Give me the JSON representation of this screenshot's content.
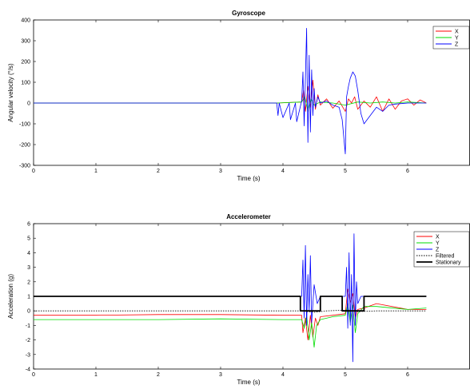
{
  "chart_data": [
    {
      "type": "line",
      "title": "Gyroscope",
      "xlabel": "Time (s)",
      "ylabel": "Angular velocity (°/s)",
      "xlim": [
        0,
        7
      ],
      "ylim": [
        -300,
        400
      ],
      "xticks": [
        0,
        1,
        2,
        3,
        4,
        5,
        6
      ],
      "yticks": [
        -300,
        -200,
        -100,
        0,
        100,
        200,
        300,
        400
      ],
      "legend_position": "top-right",
      "grid": false,
      "series": [
        {
          "name": "X",
          "color": "#ff0000",
          "x": [
            0,
            3.9,
            4.3,
            4.33,
            4.36,
            4.4,
            4.44,
            4.48,
            4.52,
            4.56,
            4.6,
            4.7,
            4.8,
            4.9,
            5.0,
            5.05,
            5.1,
            5.15,
            5.2,
            5.3,
            5.4,
            5.5,
            5.6,
            5.7,
            5.8,
            5.9,
            6.0,
            6.1,
            6.2,
            6.3
          ],
          "y": [
            0,
            0,
            5,
            60,
            -40,
            80,
            -20,
            110,
            -30,
            40,
            -10,
            20,
            -25,
            10,
            -40,
            20,
            0,
            30,
            -30,
            10,
            -20,
            30,
            -40,
            20,
            -30,
            10,
            20,
            -10,
            15,
            0
          ]
        },
        {
          "name": "Y",
          "color": "#00dd00",
          "x": [
            0,
            3.9,
            4.3,
            4.35,
            4.4,
            4.45,
            4.5,
            4.6,
            4.8,
            5.0,
            5.2,
            5.4,
            5.6,
            5.8,
            6.0,
            6.3
          ],
          "y": [
            0,
            0,
            5,
            30,
            -40,
            20,
            -10,
            5,
            0,
            -10,
            5,
            0,
            5,
            0,
            5,
            0
          ]
        },
        {
          "name": "Z",
          "color": "#0000ff",
          "x": [
            0,
            3.9,
            3.92,
            3.94,
            4.0,
            4.1,
            4.12,
            4.2,
            4.22,
            4.3,
            4.32,
            4.34,
            4.36,
            4.38,
            4.4,
            4.42,
            4.44,
            4.46,
            4.48,
            4.5,
            4.52,
            4.56,
            4.6,
            4.7,
            4.8,
            4.9,
            4.95,
            5.0,
            5.02,
            5.05,
            5.08,
            5.12,
            5.16,
            5.2,
            5.25,
            5.3,
            5.4,
            5.5,
            5.6,
            5.7,
            5.8,
            6.0,
            6.2,
            6.3
          ],
          "y": [
            0,
            0,
            -60,
            0,
            -70,
            0,
            -80,
            0,
            -90,
            10,
            150,
            -110,
            120,
            360,
            -190,
            230,
            -140,
            160,
            -60,
            70,
            -20,
            30,
            0,
            10,
            -10,
            -20,
            -80,
            -245,
            30,
            80,
            120,
            150,
            130,
            60,
            -50,
            -100,
            -60,
            -20,
            -40,
            -10,
            -5,
            0,
            0,
            0
          ]
        }
      ]
    },
    {
      "type": "line",
      "title": "Accelerometer",
      "xlabel": "Time (s)",
      "ylabel": "Acceleration (g)",
      "xlim": [
        0,
        7
      ],
      "ylim": [
        -4,
        6
      ],
      "xticks": [
        0,
        1,
        2,
        3,
        4,
        5,
        6
      ],
      "yticks": [
        -4,
        -3,
        -2,
        -1,
        0,
        1,
        2,
        3,
        4,
        5,
        6
      ],
      "legend_position": "top-right",
      "grid": false,
      "series": [
        {
          "name": "X",
          "color": "#ff0000",
          "x": [
            0,
            1,
            2,
            3,
            4,
            4.3,
            4.32,
            4.36,
            4.4,
            4.44,
            4.48,
            4.52,
            4.56,
            4.6,
            4.8,
            5.0,
            5.04,
            5.08,
            5.12,
            5.16,
            5.2,
            5.3,
            5.5,
            6.0,
            6.3
          ],
          "y": [
            -0.3,
            -0.3,
            -0.25,
            -0.25,
            -0.3,
            -0.3,
            -1.5,
            -0.5,
            -2.0,
            -0.3,
            -1.8,
            -0.5,
            -1.0,
            -0.4,
            -0.3,
            -0.2,
            1.5,
            0.6,
            1.2,
            -0.5,
            0.1,
            0.2,
            0.5,
            0.1,
            0.1
          ]
        },
        {
          "name": "Y",
          "color": "#00dd00",
          "x": [
            0,
            1,
            2,
            3,
            4,
            4.3,
            4.34,
            4.38,
            4.42,
            4.46,
            4.5,
            4.54,
            4.6,
            4.8,
            5.0,
            5.04,
            5.08,
            5.12,
            5.16,
            5.2,
            5.3,
            5.5,
            6.0,
            6.3
          ],
          "y": [
            -0.6,
            -0.6,
            -0.6,
            -0.55,
            -0.6,
            -0.6,
            -1.2,
            -0.3,
            -2.0,
            -0.8,
            -2.5,
            -1.0,
            -0.6,
            -0.4,
            -0.3,
            0.5,
            -0.8,
            0.4,
            -1.5,
            -0.2,
            0.3,
            0.3,
            0.1,
            0.2
          ]
        },
        {
          "name": "Z",
          "color": "#0000ff",
          "x": [
            0,
            1,
            2,
            3,
            4,
            4.3,
            4.32,
            4.34,
            4.36,
            4.38,
            4.4,
            4.42,
            4.44,
            4.46,
            4.5,
            4.55,
            4.6,
            4.8,
            4.95,
            5.0,
            5.02,
            5.04,
            5.06,
            5.08,
            5.1,
            5.12,
            5.14,
            5.16,
            5.18,
            5.2,
            5.25,
            5.3,
            5.5,
            6.0,
            6.3
          ],
          "y": [
            1.0,
            1.0,
            1.0,
            1.0,
            1.0,
            1.0,
            3.5,
            -0.5,
            4.5,
            -1.0,
            2.5,
            0.0,
            3.8,
            -0.8,
            1.8,
            0.5,
            1.0,
            1.0,
            1.0,
            1.0,
            3.0,
            -1.2,
            4.0,
            -1.0,
            2.5,
            -3.5,
            5.3,
            -1.0,
            2.0,
            0.5,
            1.0,
            1.0,
            1.0,
            1.0,
            1.0
          ]
        },
        {
          "name": "Filtered",
          "color": "#000000",
          "dash": true,
          "x": [
            0,
            4.3,
            4.5,
            4.7,
            5.0,
            5.2,
            5.5,
            6.3
          ],
          "y": [
            0,
            0,
            -0.1,
            0,
            0.05,
            -0.05,
            0,
            0
          ]
        },
        {
          "name": "Stationary",
          "color": "#000000",
          "thick": true,
          "x": [
            0,
            4.28,
            4.28,
            4.6,
            4.6,
            4.95,
            4.95,
            5.3,
            5.3,
            6.3
          ],
          "y": [
            1,
            1,
            0,
            0,
            1,
            1,
            0,
            0,
            1,
            1
          ]
        }
      ]
    }
  ]
}
